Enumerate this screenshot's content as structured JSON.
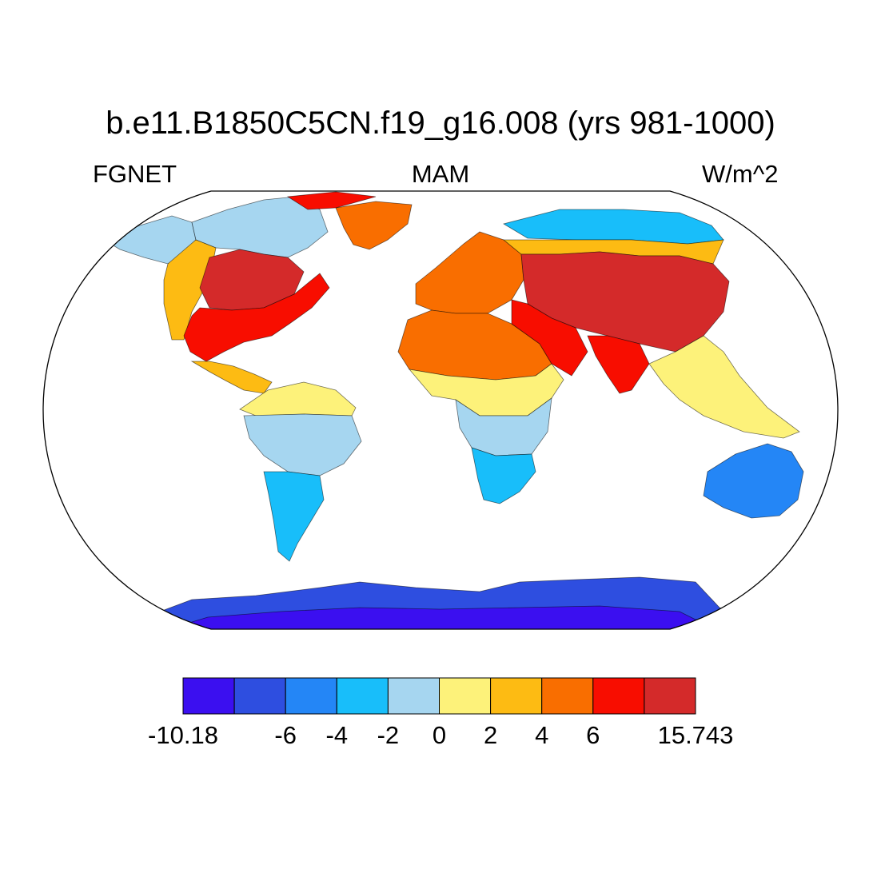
{
  "title": "b.e11.B1850C5CN.f19_g16.008 (yrs 981-1000)",
  "left_label": "FGNET",
  "center_label": "MAM",
  "right_label": "W/m^2",
  "colorbar": {
    "colors": [
      "#3b0ff0",
      "#2e4ee0",
      "#2486f6",
      "#18befa",
      "#a6d6f0",
      "#fdf27a",
      "#fdbb13",
      "#f96e00",
      "#f80d00",
      "#d42a2a"
    ],
    "tick_labels": [
      {
        "value": -10.18,
        "label": "-10.18",
        "boundary_index": 0
      },
      {
        "value": -6,
        "label": "-6",
        "boundary_index": 2
      },
      {
        "value": -4,
        "label": "-4",
        "boundary_index": 3
      },
      {
        "value": -2,
        "label": "-2",
        "boundary_index": 4
      },
      {
        "value": 0,
        "label": "0",
        "boundary_index": 5
      },
      {
        "value": 2,
        "label": "2",
        "boundary_index": 6
      },
      {
        "value": 4,
        "label": "4",
        "boundary_index": 7
      },
      {
        "value": 6,
        "label": "6",
        "boundary_index": 8
      },
      {
        "value": 15.743,
        "label": "15.743",
        "boundary_index": 10
      }
    ]
  },
  "regions": [
    {
      "name": "arctic-canada",
      "level": 4
    },
    {
      "name": "alaska",
      "level": 4
    },
    {
      "name": "north-america-west",
      "level": 6
    },
    {
      "name": "north-america-central",
      "level": 9
    },
    {
      "name": "north-america-east",
      "level": 8
    },
    {
      "name": "greenland",
      "level": 7
    },
    {
      "name": "greenland-north",
      "level": 8
    },
    {
      "name": "mexico",
      "level": 6
    },
    {
      "name": "south-america-north",
      "level": 5
    },
    {
      "name": "amazon",
      "level": 4
    },
    {
      "name": "patagonia",
      "level": 3
    },
    {
      "name": "europe",
      "level": 7
    },
    {
      "name": "siberia",
      "level": 3
    },
    {
      "name": "russia",
      "level": 6
    },
    {
      "name": "central-asia",
      "level": 9
    },
    {
      "name": "sahara",
      "level": 7
    },
    {
      "name": "middle-east",
      "level": 8
    },
    {
      "name": "sahel",
      "level": 5
    },
    {
      "name": "central-africa",
      "level": 4
    },
    {
      "name": "southern-africa",
      "level": 3
    },
    {
      "name": "india",
      "level": 8
    },
    {
      "name": "southeast-asia",
      "level": 5
    },
    {
      "name": "australia",
      "level": 2
    },
    {
      "name": "antarctica",
      "level": 1
    },
    {
      "name": "antarctica-interior",
      "level": 0
    }
  ]
}
